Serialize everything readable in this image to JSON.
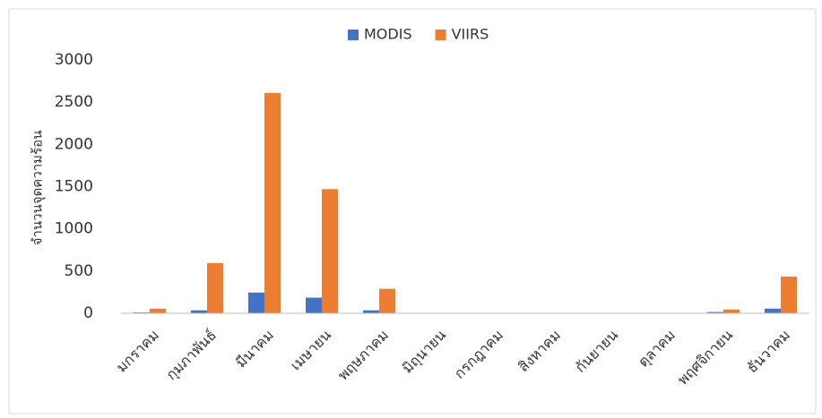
{
  "chart_data": {
    "type": "bar",
    "y_label": "จำนวนจุดความร้อน",
    "categories": [
      "มกราคม",
      "กุมภาพันธ์",
      "มีนาคม",
      "เมษายน",
      "พฤษภาคม",
      "มิถุนายน",
      "กรกฎาคม",
      "สิงหาคม",
      "กันยายน",
      "ตุลาคม",
      "พฤศจิกายน",
      "ธันวาคม"
    ],
    "series": [
      {
        "name": "MODIS",
        "color": "#4472c4",
        "values": [
          10,
          35,
          245,
          185,
          35,
          0,
          0,
          0,
          0,
          0,
          15,
          55
        ]
      },
      {
        "name": "VIIRS",
        "color": "#ed7d31",
        "values": [
          55,
          595,
          2610,
          1470,
          290,
          0,
          0,
          0,
          0,
          0,
          45,
          435
        ]
      }
    ],
    "ylim": [
      0,
      3000
    ],
    "yticks": [
      0,
      500,
      1000,
      1500,
      2000,
      2500,
      3000
    ],
    "grid": false,
    "legend": "top"
  }
}
